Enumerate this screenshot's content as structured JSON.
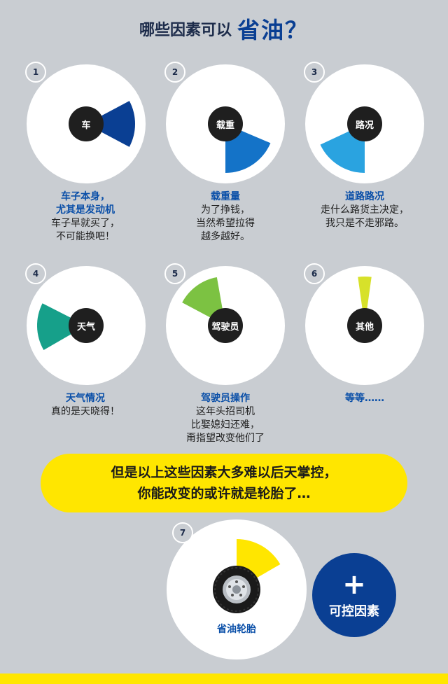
{
  "title": {
    "prefix": "哪些因素可以",
    "highlight": "省油？"
  },
  "colors": {
    "background": "#c9cdd2",
    "car": "#0a3f93",
    "load": "#1473c8",
    "road": "#2aa3e0",
    "weather": "#16a08a",
    "driver": "#7cc242",
    "other": "#d7e12a",
    "tire": "#ffe600",
    "accent_text": "#0a4fa8"
  },
  "factors": [
    {
      "number": "1",
      "center": "车",
      "head": "车子本身，",
      "lines": [
        "尤其是发动机",
        "车子早就买了，",
        "不可能换吧！"
      ],
      "bold_lines": 2,
      "wedge": [
        62,
        118
      ],
      "color_key": "car"
    },
    {
      "number": "2",
      "center": "载重",
      "head": "载重量",
      "lines": [
        "为了挣钱，",
        "当然希望拉得",
        "越多越好。"
      ],
      "bold_lines": 1,
      "wedge": [
        113,
        180
      ],
      "color_key": "load"
    },
    {
      "number": "3",
      "center": "路况",
      "head": "道路路况",
      "lines": [
        "走什么路货主决定，",
        "我只是不走邪路。"
      ],
      "bold_lines": 1,
      "wedge": [
        180,
        245
      ],
      "color_key": "road"
    },
    {
      "number": "4",
      "center": "天气",
      "head": "天气情况",
      "lines": [
        "真的是天晓得！"
      ],
      "bold_lines": 1,
      "wedge": [
        240,
        297
      ],
      "color_key": "weather"
    },
    {
      "number": "5",
      "center": "驾驶员",
      "head": "驾驶员操作",
      "lines": [
        "这年头招司机",
        "比娶媳妇还难，",
        "甭指望改变他们了"
      ],
      "bold_lines": 1,
      "wedge": [
        298,
        350
      ],
      "color_key": "driver"
    },
    {
      "number": "6",
      "center": "其他",
      "head": "等等……",
      "lines": [],
      "bold_lines": 1,
      "wedge": [
        352,
        8
      ],
      "color_key": "other"
    }
  ],
  "banner": {
    "line1": "但是以上这些因素大多难以后天掌控，",
    "line2": "你能改变的或许就是轮胎了…"
  },
  "tire": {
    "number": "7",
    "caption": "省油轮胎",
    "wedge": [
      0,
      60
    ],
    "color_key": "tire"
  },
  "controllable": {
    "symbol": "+",
    "label": "可控因素"
  }
}
